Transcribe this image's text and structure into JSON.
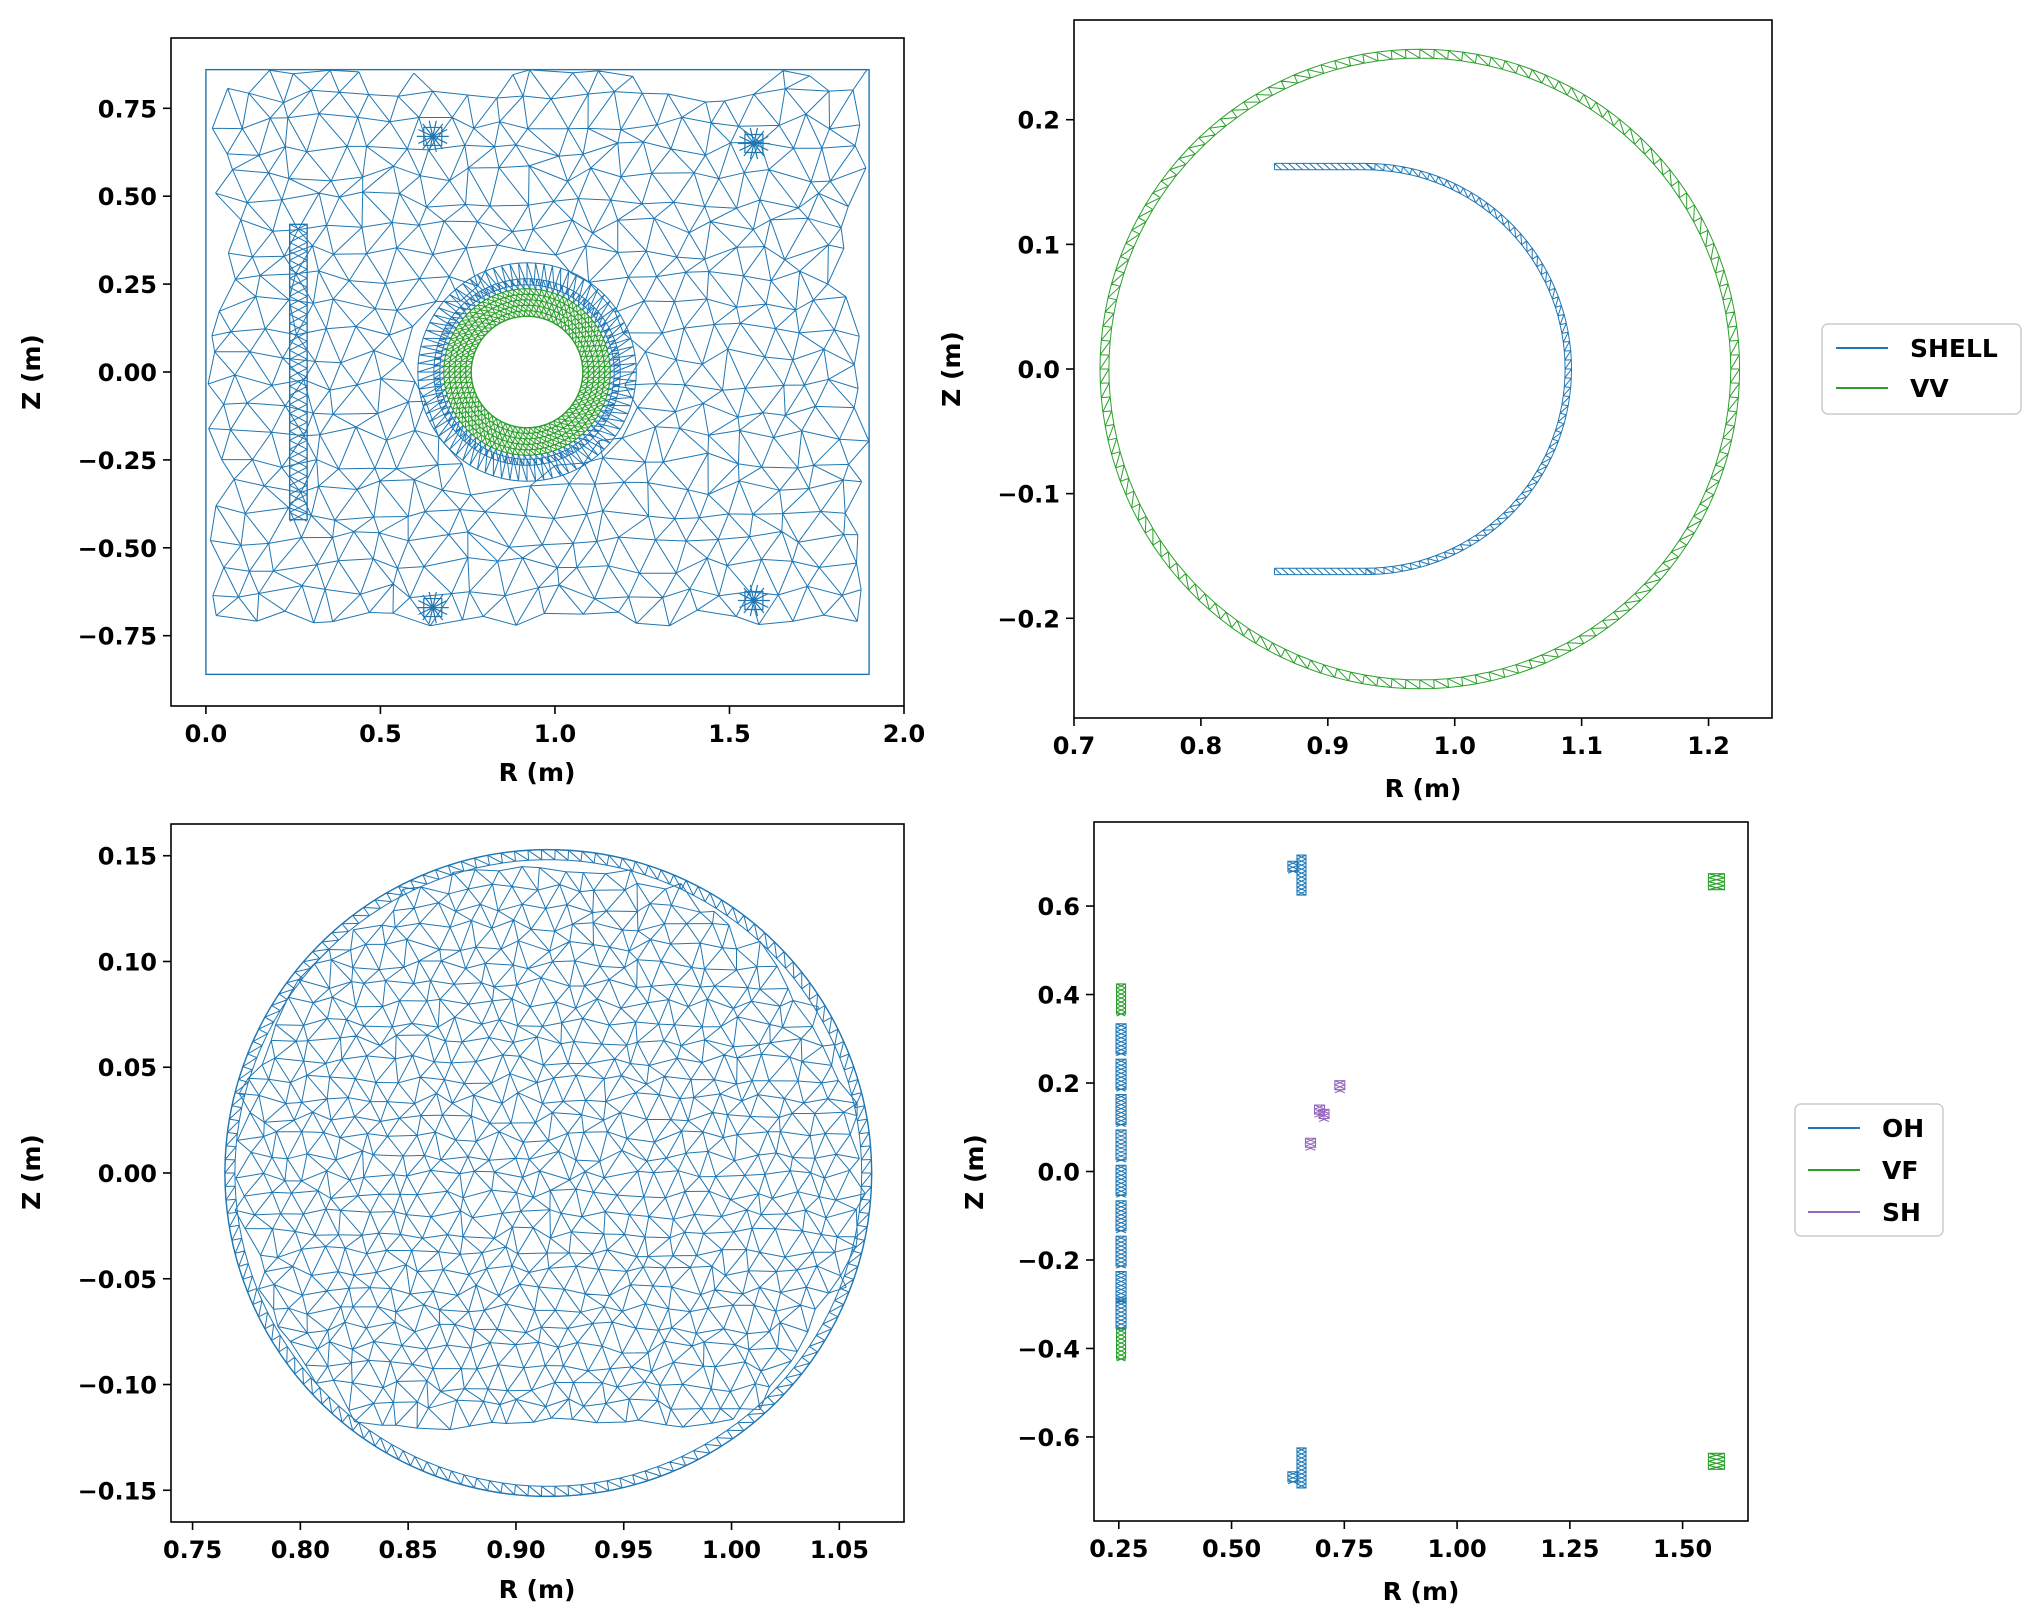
{
  "colors": {
    "blue": "#1f77b4",
    "green": "#2ca02c",
    "purple": "#9467bd"
  },
  "chart_data": [
    {
      "type": "mesh",
      "xlabel": "R (m)",
      "ylabel": "Z (m)",
      "xlim": [
        -0.1,
        2.0
      ],
      "ylim": [
        -0.95,
        0.95
      ],
      "xticks": [
        0.0,
        0.5,
        1.0,
        1.5,
        2.0
      ],
      "xticklabels": [
        "0.0",
        "0.5",
        "1.0",
        "1.5",
        "2.0"
      ],
      "yticks": [
        -0.75,
        -0.5,
        -0.25,
        0.0,
        0.25,
        0.5,
        0.75
      ],
      "yticklabels": [
        "−0.75",
        "−0.50",
        "−0.25",
        "0.00",
        "0.25",
        "0.50",
        "0.75"
      ],
      "domain_box": {
        "r": [
          0.0,
          1.9
        ],
        "z": [
          -0.86,
          0.86
        ]
      },
      "vessel_ring": {
        "center": [
          0.92,
          0.0
        ],
        "r_inner": 0.16,
        "r_outer": 0.25
      },
      "coil_refinements": [
        [
          0.65,
          0.67
        ],
        [
          1.57,
          0.65
        ],
        [
          0.65,
          -0.67
        ],
        [
          1.57,
          -0.65
        ]
      ],
      "oh_strip": {
        "r": [
          0.24,
          0.29
        ],
        "z": [
          -0.42,
          0.42
        ]
      }
    },
    {
      "type": "mesh",
      "xlabel": "R (m)",
      "ylabel": "Z (m)",
      "xlim": [
        0.7,
        1.25
      ],
      "ylim": [
        -0.28,
        0.28
      ],
      "xticks": [
        0.7,
        0.8,
        0.9,
        1.0,
        1.1,
        1.2
      ],
      "xticklabels": [
        "0.7",
        "0.8",
        "0.9",
        "1.0",
        "1.1",
        "1.2"
      ],
      "yticks": [
        -0.2,
        -0.1,
        0.0,
        0.1,
        0.2
      ],
      "yticklabels": [
        "−0.2",
        "−0.1",
        "0.0",
        "0.1",
        "0.2"
      ],
      "legend": {
        "position": "outside-right",
        "entries": [
          "SHELL",
          "VV"
        ]
      },
      "series": [
        {
          "name": "SHELL",
          "shape": "half-ring",
          "center": [
            0.93,
            0.0
          ],
          "r_inner": 0.157,
          "r_outer": 0.162
        },
        {
          "name": "VV",
          "shape": "ring",
          "center": [
            0.9725,
            0.0
          ],
          "r_inner": 0.245,
          "r_outer": 0.252
        }
      ]
    },
    {
      "type": "mesh",
      "xlabel": "R (m)",
      "ylabel": "Z (m)",
      "xlim": [
        0.74,
        1.08
      ],
      "ylim": [
        -0.165,
        0.165
      ],
      "xticks": [
        0.75,
        0.8,
        0.85,
        0.9,
        0.95,
        1.0,
        1.05
      ],
      "xticklabels": [
        "0.75",
        "0.80",
        "0.85",
        "0.90",
        "0.95",
        "1.00",
        "1.05"
      ],
      "yticks": [
        -0.15,
        -0.1,
        -0.05,
        0.0,
        0.05,
        0.1,
        0.15
      ],
      "yticklabels": [
        "−0.15",
        "−0.10",
        "−0.05",
        "0.00",
        "0.05",
        "0.10",
        "0.15"
      ],
      "disk": {
        "center": [
          0.915,
          0.0
        ],
        "radius": 0.15
      }
    },
    {
      "type": "mesh",
      "xlabel": "R (m)",
      "ylabel": "Z (m)",
      "xlim": [
        0.195,
        1.645
      ],
      "ylim": [
        -0.79,
        0.79
      ],
      "xticks": [
        0.25,
        0.5,
        0.75,
        1.0,
        1.25,
        1.5
      ],
      "xticklabels": [
        "0.25",
        "0.50",
        "0.75",
        "1.00",
        "1.25",
        "1.50"
      ],
      "yticks": [
        -0.6,
        -0.4,
        -0.2,
        0.0,
        0.2,
        0.4,
        0.6
      ],
      "yticklabels": [
        "−0.6",
        "−0.4",
        "−0.2",
        "0.0",
        "0.2",
        "0.4",
        "0.6"
      ],
      "legend": {
        "position": "outside-right",
        "entries": [
          "OH",
          "VF",
          "SH"
        ]
      },
      "series": [
        {
          "name": "OH",
          "coils": [
            [
              0.255,
              0.3
            ],
            [
              0.255,
              0.22
            ],
            [
              0.255,
              0.14
            ],
            [
              0.255,
              0.06
            ],
            [
              0.255,
              -0.02
            ],
            [
              0.255,
              -0.1
            ],
            [
              0.255,
              -0.18
            ],
            [
              0.255,
              -0.26
            ],
            [
              0.255,
              -0.32
            ],
            [
              0.655,
              0.67
            ],
            [
              0.655,
              -0.67
            ],
            [
              0.636,
              0.69
            ],
            [
              0.636,
              -0.69
            ]
          ]
        },
        {
          "name": "VF",
          "coils": [
            [
              0.255,
              0.39
            ],
            [
              0.255,
              -0.39
            ],
            [
              1.575,
              0.655
            ],
            [
              1.575,
              -0.655
            ]
          ]
        },
        {
          "name": "SH",
          "coils": [
            [
              0.675,
              0.065
            ],
            [
              0.695,
              0.14
            ],
            [
              0.705,
              0.13
            ],
            [
              0.74,
              0.195
            ]
          ]
        }
      ]
    }
  ]
}
